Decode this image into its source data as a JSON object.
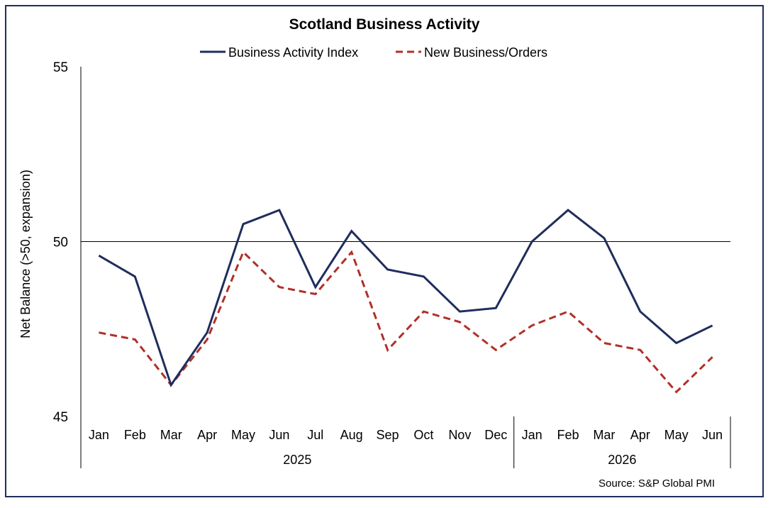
{
  "chart_data": {
    "type": "line",
    "title": "Scotland Business Activity",
    "ylabel": "Net Balance (>50, expansion)",
    "xlabel": "",
    "ylim": [
      45,
      55
    ],
    "yticks": [
      45,
      50,
      55
    ],
    "reference_line": 50,
    "categories": [
      "Jan",
      "Feb",
      "Mar",
      "Apr",
      "May",
      "Jun",
      "Jul",
      "Aug",
      "Sep",
      "Oct",
      "Nov",
      "Dec",
      "Jan",
      "Feb",
      "Mar",
      "Apr",
      "May",
      "Jun"
    ],
    "year_groups": [
      {
        "label": "2025",
        "count": 12
      },
      {
        "label": "2026",
        "count": 6
      }
    ],
    "series": [
      {
        "name": "Business Activity Index",
        "color": "#1f2d5c",
        "dash": "solid",
        "values": [
          49.6,
          49.0,
          45.9,
          47.4,
          50.5,
          50.9,
          48.7,
          50.3,
          49.2,
          49.0,
          48.0,
          48.1,
          50.0,
          50.9,
          50.1,
          48.0,
          47.1,
          47.6
        ]
      },
      {
        "name": "New Business/Orders",
        "color": "#b03028",
        "dash": "dashed",
        "values": [
          47.4,
          47.2,
          45.9,
          47.2,
          49.7,
          48.7,
          48.5,
          49.7,
          46.9,
          48.0,
          47.7,
          46.9,
          47.6,
          48.0,
          47.1,
          46.9,
          45.7,
          46.7
        ]
      }
    ],
    "legend_position": "top-center",
    "grid": false,
    "source": "Source: S&P Global PMI"
  }
}
